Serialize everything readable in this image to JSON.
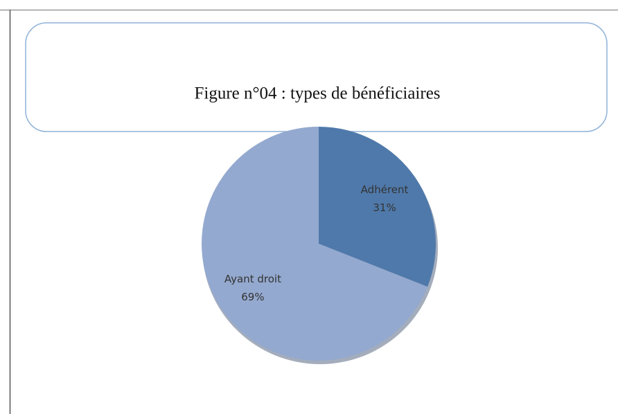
{
  "chart_data": {
    "type": "pie",
    "title": "Figure n°04 : types de bénéficiaires",
    "categories": [
      "Adhérent",
      "Ayant droit"
    ],
    "values": [
      31,
      69
    ],
    "value_labels": [
      "31%",
      "69%"
    ],
    "colors": [
      "#4f79aa",
      "#94a9cf"
    ]
  }
}
